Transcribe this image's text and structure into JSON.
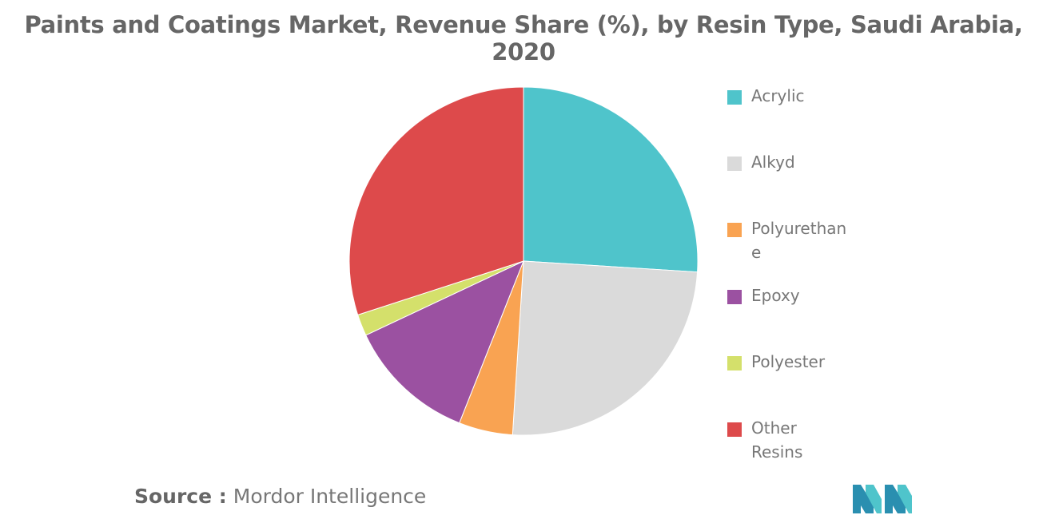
{
  "title": "Paints and Coatings Market, Revenue Share (%), by Resin Type, Saudi Arabia, 2020",
  "source": {
    "label": "Source :",
    "value": "Mordor Intelligence"
  },
  "chart_data": {
    "type": "pie",
    "title": "Paints and Coatings Market, Revenue Share (%), by Resin Type, Saudi Arabia, 2020",
    "legend_position": "right",
    "slices": [
      {
        "label": "Acrylic",
        "value": 26,
        "color": "#4fc4cb"
      },
      {
        "label": "Alkyd",
        "value": 25,
        "color": "#dadada"
      },
      {
        "label": "Polyurethane",
        "value": 5,
        "color": "#f9a352"
      },
      {
        "label": "Epoxy",
        "value": 12,
        "color": "#9b51a1"
      },
      {
        "label": "Polyester",
        "value": 2,
        "color": "#d4e06b"
      },
      {
        "label": "Other Resins",
        "value": 30,
        "color": "#dd4a4b"
      }
    ]
  }
}
